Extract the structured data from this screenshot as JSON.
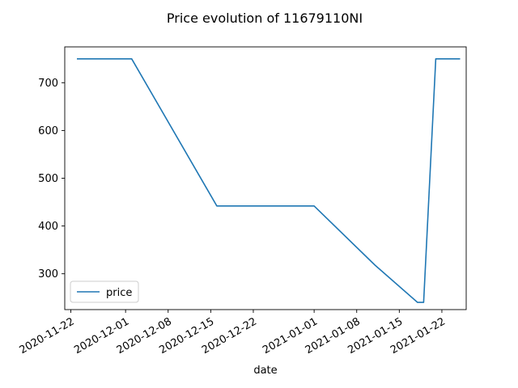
{
  "chart_data": {
    "type": "line",
    "title": "Price evolution of 11679110NI",
    "xlabel": "date",
    "ylabel": "",
    "xlim": [
      "2020-11-21",
      "2021-01-26"
    ],
    "ylim": [
      225,
      775
    ],
    "x_ticks": [
      "2020-11-22",
      "2020-12-01",
      "2020-12-08",
      "2020-12-15",
      "2020-12-22",
      "2021-01-01",
      "2021-01-08",
      "2021-01-15",
      "2021-01-22"
    ],
    "y_ticks": [
      300,
      400,
      500,
      600,
      700
    ],
    "grid": false,
    "legend_position": "lower-left",
    "series": [
      {
        "name": "price",
        "color": "#1f77b4",
        "x": [
          "2020-11-23",
          "2020-12-02",
          "2020-12-16",
          "2021-01-01",
          "2021-01-11",
          "2021-01-18",
          "2021-01-19",
          "2021-01-21",
          "2021-01-25"
        ],
        "y": [
          750,
          750,
          442,
          442,
          318,
          240,
          240,
          750,
          750
        ]
      }
    ]
  }
}
